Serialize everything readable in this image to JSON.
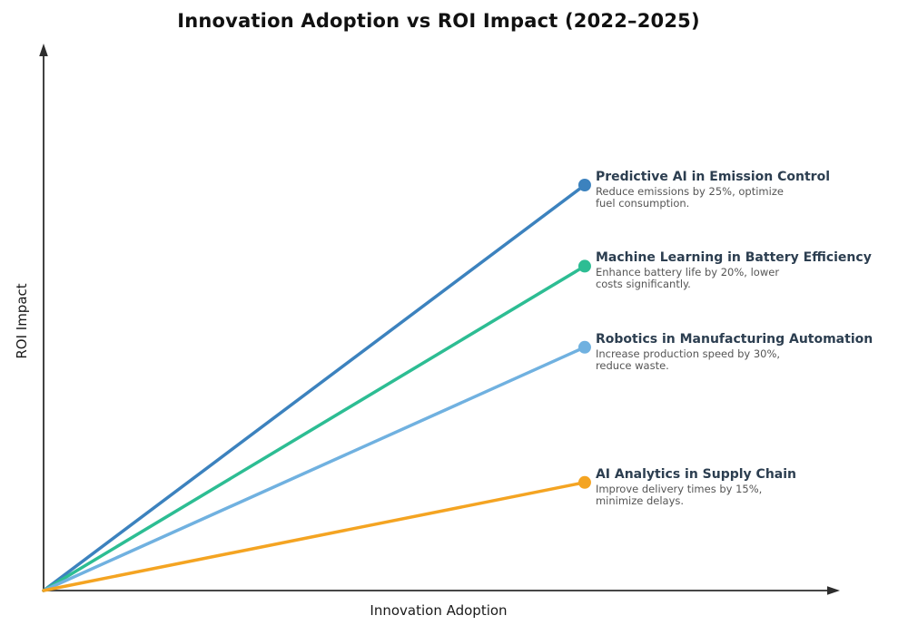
{
  "title": "Innovation Adoption vs ROI Impact (2022–2025)",
  "axes": {
    "x_label": "Innovation Adoption",
    "y_label": "ROI Impact",
    "axis_color": "#2d2d2d"
  },
  "chart_data": {
    "type": "line",
    "title": "Innovation Adoption vs ROI Impact (2022–2025)",
    "xlabel": "Innovation Adoption",
    "ylabel": "ROI Impact",
    "x_range": [
      0,
      1
    ],
    "y_range": [
      0,
      100
    ],
    "grid": false,
    "legend": "none",
    "axis_ticks": "none",
    "series": [
      {
        "name": "Predictive AI in Emission Control",
        "description": "Reduce emissions by 25%, optimize fuel consumption.",
        "desc_lines": [
          "Reduce emissions by 25%, optimize",
          "fuel consumption."
        ],
        "color": "#3c82be",
        "x": [
          0,
          0.685
        ],
        "y": [
          0,
          75
        ]
      },
      {
        "name": "Machine Learning in Battery Efficiency",
        "description": "Enhance battery life by 20%, lower costs significantly.",
        "desc_lines": [
          "Enhance battery life by 20%, lower",
          "costs significantly."
        ],
        "color": "#2dbd93",
        "x": [
          0,
          0.685
        ],
        "y": [
          0,
          60
        ]
      },
      {
        "name": "Robotics in Manufacturing Automation",
        "description": "Increase production speed by 30%, reduce waste.",
        "desc_lines": [
          "Increase production speed by 30%,",
          "reduce waste."
        ],
        "color": "#70b1e0",
        "x": [
          0,
          0.685
        ],
        "y": [
          0,
          45
        ]
      },
      {
        "name": "AI Analytics in Supply Chain",
        "description": "Improve delivery times by 15%, minimize delays.",
        "desc_lines": [
          "Improve delivery times by 15%,",
          "minimize delays."
        ],
        "color": "#f4a422",
        "x": [
          0,
          0.685
        ],
        "y": [
          0,
          20
        ]
      }
    ]
  }
}
